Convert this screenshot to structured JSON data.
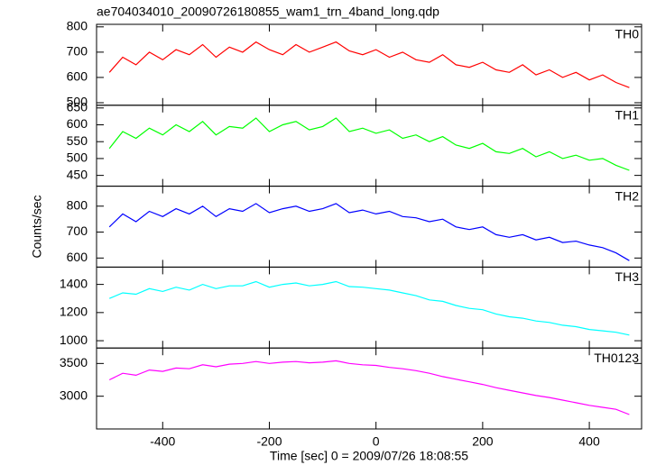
{
  "chart_data": [
    {
      "type": "line",
      "title": "ae704034010_20090726180855_wam1_trn_4band_long.qdp",
      "label": "TH0",
      "color": "#ff0000",
      "x": [
        -500,
        -475,
        -450,
        -425,
        -400,
        -375,
        -350,
        -325,
        -300,
        -275,
        -250,
        -225,
        -200,
        -175,
        -150,
        -125,
        -100,
        -75,
        -50,
        -25,
        0,
        25,
        50,
        75,
        100,
        125,
        150,
        175,
        200,
        225,
        250,
        275,
        300,
        325,
        350,
        375,
        400,
        425,
        450,
        475
      ],
      "values": [
        620,
        680,
        650,
        700,
        670,
        710,
        690,
        730,
        680,
        720,
        700,
        740,
        710,
        690,
        730,
        700,
        720,
        740,
        705,
        690,
        710,
        680,
        700,
        670,
        660,
        690,
        650,
        640,
        660,
        630,
        620,
        650,
        610,
        630,
        600,
        620,
        590,
        610,
        580,
        560
      ],
      "xlim": [
        -524,
        498
      ],
      "xticks": [
        -400,
        -200,
        0,
        200,
        400
      ],
      "ylim": [
        490,
        810
      ],
      "yticks": [
        500,
        600,
        700,
        800
      ]
    },
    {
      "type": "line",
      "label": "TH1",
      "color": "#00ff00",
      "x": [
        -500,
        -475,
        -450,
        -425,
        -400,
        -375,
        -350,
        -325,
        -300,
        -275,
        -250,
        -225,
        -200,
        -175,
        -150,
        -125,
        -100,
        -75,
        -50,
        -25,
        0,
        25,
        50,
        75,
        100,
        125,
        150,
        175,
        200,
        225,
        250,
        275,
        300,
        325,
        350,
        375,
        400,
        425,
        450,
        475
      ],
      "values": [
        530,
        580,
        560,
        590,
        570,
        600,
        580,
        610,
        570,
        595,
        590,
        620,
        580,
        600,
        610,
        585,
        595,
        620,
        580,
        590,
        575,
        585,
        560,
        570,
        550,
        565,
        540,
        530,
        545,
        520,
        515,
        530,
        505,
        520,
        500,
        510,
        495,
        500,
        480,
        465
      ],
      "xlim": [
        -524,
        498
      ],
      "xticks": [
        -400,
        -200,
        0,
        200,
        400
      ],
      "ylim": [
        418,
        658
      ],
      "yticks": [
        450,
        500,
        550,
        600,
        650
      ]
    },
    {
      "type": "line",
      "label": "TH2",
      "color": "#0000ff",
      "ylabel": "Counts/sec",
      "x": [
        -500,
        -475,
        -450,
        -425,
        -400,
        -375,
        -350,
        -325,
        -300,
        -275,
        -250,
        -225,
        -200,
        -175,
        -150,
        -125,
        -100,
        -75,
        -50,
        -25,
        0,
        25,
        50,
        75,
        100,
        125,
        150,
        175,
        200,
        225,
        250,
        275,
        300,
        325,
        350,
        375,
        400,
        425,
        450,
        475
      ],
      "values": [
        720,
        770,
        740,
        780,
        760,
        790,
        770,
        800,
        760,
        790,
        780,
        810,
        775,
        790,
        800,
        780,
        790,
        810,
        775,
        785,
        770,
        780,
        760,
        755,
        740,
        750,
        720,
        710,
        720,
        690,
        680,
        690,
        670,
        680,
        660,
        665,
        650,
        640,
        620,
        590
      ],
      "xlim": [
        -524,
        498
      ],
      "xticks": [
        -400,
        -200,
        0,
        200,
        400
      ],
      "ylim": [
        565,
        877
      ],
      "yticks": [
        600,
        700,
        800
      ]
    },
    {
      "type": "line",
      "label": "TH3",
      "color": "#00ffff",
      "x": [
        -500,
        -475,
        -450,
        -425,
        -400,
        -375,
        -350,
        -325,
        -300,
        -275,
        -250,
        -225,
        -200,
        -175,
        -150,
        -125,
        -100,
        -75,
        -50,
        -25,
        0,
        25,
        50,
        75,
        100,
        125,
        150,
        175,
        200,
        225,
        250,
        275,
        300,
        325,
        350,
        375,
        400,
        425,
        450,
        475
      ],
      "values": [
        1300,
        1340,
        1330,
        1370,
        1350,
        1380,
        1360,
        1400,
        1370,
        1390,
        1390,
        1420,
        1380,
        1400,
        1410,
        1390,
        1400,
        1420,
        1385,
        1380,
        1370,
        1360,
        1340,
        1320,
        1290,
        1280,
        1250,
        1230,
        1220,
        1190,
        1170,
        1160,
        1140,
        1130,
        1110,
        1100,
        1080,
        1070,
        1060,
        1040
      ],
      "xlim": [
        -524,
        498
      ],
      "xticks": [
        -400,
        -200,
        0,
        200,
        400
      ],
      "ylim": [
        948,
        1523
      ],
      "yticks": [
        1000,
        1200,
        1400
      ]
    },
    {
      "type": "line",
      "label": "TH0123",
      "color": "#ff00ff",
      "xlabel": "Time [sec] 0 = 2009/07/26 18:08:55",
      "x": [
        -500,
        -475,
        -450,
        -425,
        -400,
        -375,
        -350,
        -325,
        -300,
        -275,
        -250,
        -225,
        -200,
        -175,
        -150,
        -125,
        -100,
        -75,
        -50,
        -25,
        0,
        25,
        50,
        75,
        100,
        125,
        150,
        175,
        200,
        225,
        250,
        275,
        300,
        325,
        350,
        375,
        400,
        425,
        450,
        475
      ],
      "values": [
        3250,
        3350,
        3320,
        3400,
        3380,
        3430,
        3420,
        3480,
        3450,
        3490,
        3500,
        3530,
        3500,
        3520,
        3530,
        3510,
        3520,
        3540,
        3500,
        3480,
        3470,
        3440,
        3420,
        3390,
        3350,
        3300,
        3260,
        3220,
        3180,
        3130,
        3090,
        3050,
        3010,
        2980,
        2940,
        2900,
        2860,
        2830,
        2800,
        2720
      ],
      "xlim": [
        -524,
        498
      ],
      "xticks": [
        -400,
        -200,
        0,
        200,
        400
      ],
      "ylim": [
        2500,
        3736
      ],
      "yticks": [
        3000,
        3500
      ]
    }
  ]
}
